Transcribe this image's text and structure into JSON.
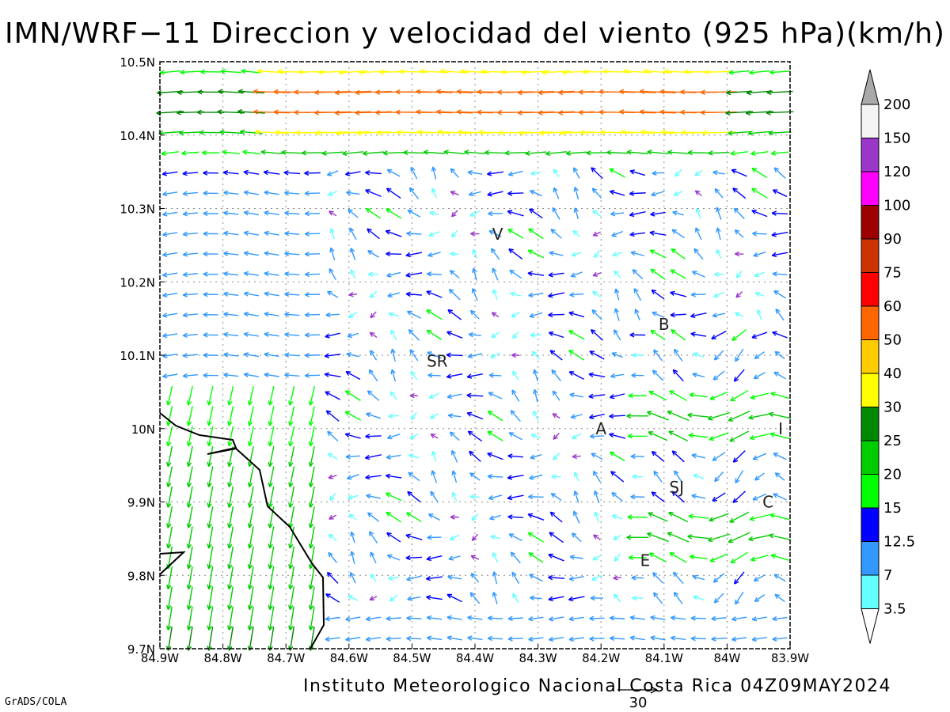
{
  "title": "IMN/WRF−11 Direccion y velocidad del viento (925 hPa)(km/h)",
  "credit": "Instituto Meteorologico Nacional Costa Rica 04Z09MAY2024",
  "software": "GrADS/COLA",
  "map": {
    "lat_range": [
      9.7,
      10.5
    ],
    "lon_range": [
      -84.9,
      -83.9
    ],
    "lat_labels": [
      "10.5N",
      "10.4N",
      "10.3N",
      "10.2N",
      "10.1N",
      "10N",
      "9.9N",
      "9.8N",
      "9.7N"
    ],
    "lon_labels": [
      "84.9W",
      "84.8W",
      "84.7W",
      "84.6W",
      "84.5W",
      "84.4W",
      "84.3W",
      "84.2W",
      "84.1W",
      "84W",
      "83.9W"
    ],
    "grid": "dotted",
    "places": [
      {
        "label": "V",
        "lon": -84.364,
        "lat": 10.265
      },
      {
        "label": "SR",
        "lon": -84.46,
        "lat": 10.092
      },
      {
        "label": "B",
        "lon": -84.1,
        "lat": 10.142
      },
      {
        "label": "A",
        "lon": -84.2,
        "lat": 10.0
      },
      {
        "label": "I",
        "lon": -83.915,
        "lat": 10.0
      },
      {
        "label": "SJ",
        "lon": -84.08,
        "lat": 9.92
      },
      {
        "label": "C",
        "lon": -83.935,
        "lat": 9.9
      },
      {
        "label": "E",
        "lon": -84.13,
        "lat": 9.82
      }
    ],
    "reference_vector": "30"
  },
  "colorbar": {
    "labels": [
      "200",
      "150",
      "120",
      "100",
      "90",
      "75",
      "60",
      "50",
      "40",
      "30",
      "25",
      "20",
      "15",
      "12.5",
      "7",
      "3.5"
    ],
    "colors": [
      "#a9a9a9",
      "#f4f4f4",
      "#9a37c9",
      "#ff00ff",
      "#9c0000",
      "#cc3300",
      "#ff0000",
      "#ff6600",
      "#ffcc00",
      "#ffff00",
      "#008800",
      "#00cc00",
      "#00ff00",
      "#0000ff",
      "#3399ff",
      "#66ffff"
    ]
  }
}
